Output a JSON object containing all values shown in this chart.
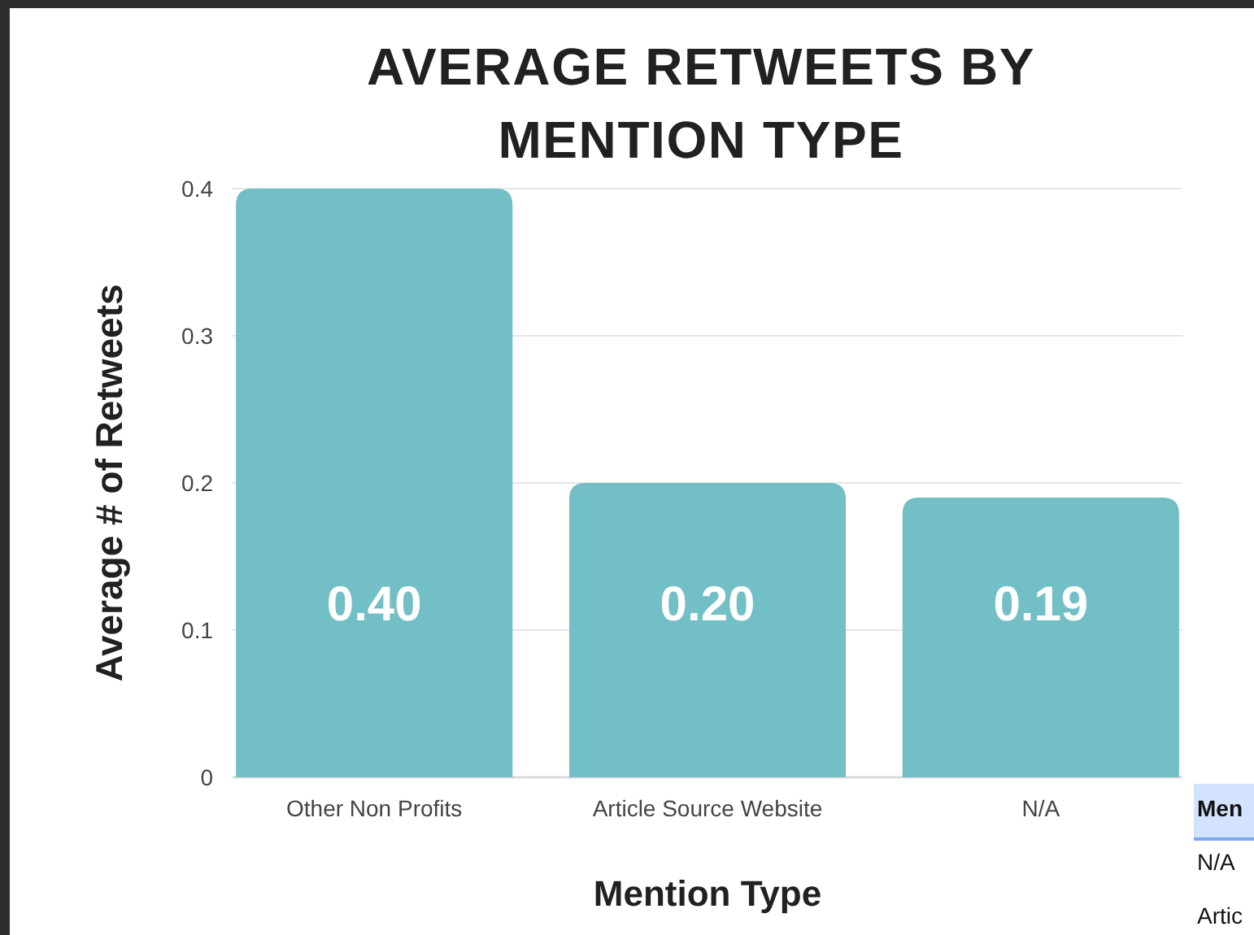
{
  "chart_data": {
    "type": "bar",
    "title": "AVERAGE RETWEETS BY MENTION TYPE",
    "xlabel": "Mention Type",
    "ylabel": "Average # of Retweets",
    "categories": [
      "Other Non Profits",
      "Article Source Website",
      "N/A"
    ],
    "values": [
      0.4,
      0.2,
      0.19
    ],
    "value_labels": [
      "0.40",
      "0.20",
      "0.19"
    ],
    "color": "#72bfc5",
    "ylim": [
      0,
      0.4
    ],
    "yticks": [
      0,
      0.1,
      0.2,
      0.3,
      0.4
    ],
    "grid": "y",
    "annotations": [
      "Men",
      "N/A",
      "Artic"
    ]
  }
}
